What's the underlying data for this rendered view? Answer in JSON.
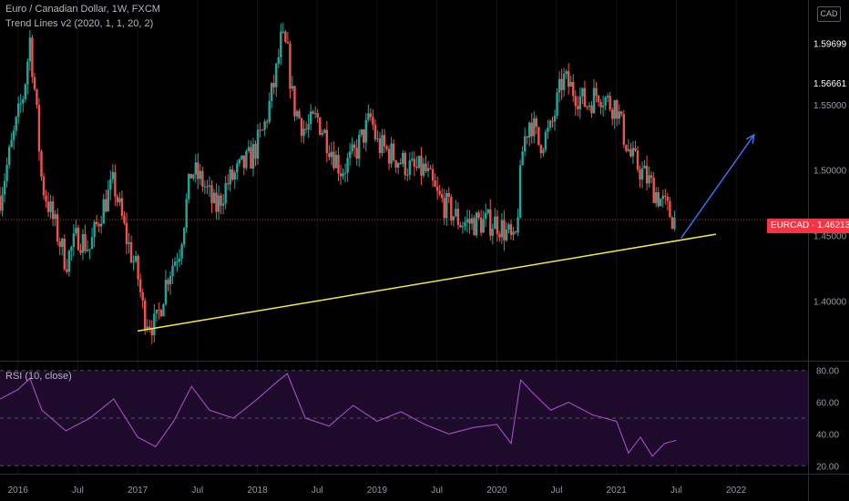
{
  "header": {
    "symbol_title": "Euro / Canadian Dollar, 1W, FXCM",
    "indicator_title": "Trend Lines v2 (2020, 1, 1, 20, 2)",
    "currency_badge": "CAD"
  },
  "rsi_panel": {
    "title": "RSI (10, close)"
  },
  "price_tag": {
    "text": "EURCAD · 1.46213",
    "value": 1.46213
  },
  "colors": {
    "background": "#000000",
    "up": "#26a69a",
    "down": "#ef5350",
    "trendline": "#f5e94a",
    "arrow": "#3a6df0",
    "rsi_line": "#a64dc8",
    "rsi_band": "#1e0a2a",
    "price_tag": "#f23645"
  },
  "chart_data": [
    {
      "type": "candlestick",
      "symbol": "EURCAD",
      "timeframe": "1W",
      "ylim": [
        1.355,
        1.63
      ],
      "xlim": [
        2015.85,
        2022.6
      ],
      "y_ticks": [
        "1.59699",
        "1.56661",
        "1.55000",
        "1.50000",
        "1.45000",
        "1.40000"
      ],
      "y_tick_values": [
        1.59699,
        1.56661,
        1.55,
        1.5,
        1.45,
        1.4
      ],
      "x_ticks": [
        "2016",
        "Jul",
        "2017",
        "Jul",
        "2018",
        "Jul",
        "2019",
        "Jul",
        "2020",
        "Jul",
        "2021",
        "Jul",
        "2022"
      ],
      "x_tick_values": [
        2016.0,
        2016.5,
        2017.0,
        2017.5,
        2018.0,
        2018.5,
        2019.0,
        2019.5,
        2020.0,
        2020.5,
        2021.0,
        2021.5,
        2022.0
      ],
      "close_path": [
        [
          2015.85,
          1.48
        ],
        [
          2015.95,
          1.52
        ],
        [
          2016.05,
          1.56
        ],
        [
          2016.1,
          1.6
        ],
        [
          2016.15,
          1.55
        ],
        [
          2016.2,
          1.49
        ],
        [
          2016.3,
          1.46
        ],
        [
          2016.4,
          1.43
        ],
        [
          2016.5,
          1.45
        ],
        [
          2016.6,
          1.44
        ],
        [
          2016.7,
          1.47
        ],
        [
          2016.8,
          1.49
        ],
        [
          2016.9,
          1.45
        ],
        [
          2017.0,
          1.42
        ],
        [
          2017.05,
          1.39
        ],
        [
          2017.15,
          1.38
        ],
        [
          2017.25,
          1.42
        ],
        [
          2017.35,
          1.44
        ],
        [
          2017.45,
          1.5
        ],
        [
          2017.55,
          1.49
        ],
        [
          2017.65,
          1.47
        ],
        [
          2017.75,
          1.49
        ],
        [
          2017.85,
          1.5
        ],
        [
          2017.95,
          1.51
        ],
        [
          2018.05,
          1.53
        ],
        [
          2018.15,
          1.57
        ],
        [
          2018.2,
          1.6
        ],
        [
          2018.25,
          1.59
        ],
        [
          2018.3,
          1.55
        ],
        [
          2018.4,
          1.53
        ],
        [
          2018.5,
          1.54
        ],
        [
          2018.6,
          1.52
        ],
        [
          2018.7,
          1.5
        ],
        [
          2018.8,
          1.51
        ],
        [
          2018.9,
          1.53
        ],
        [
          2018.95,
          1.54
        ],
        [
          2019.0,
          1.52
        ],
        [
          2019.15,
          1.51
        ],
        [
          2019.3,
          1.5
        ],
        [
          2019.4,
          1.5
        ],
        [
          2019.5,
          1.48
        ],
        [
          2019.6,
          1.47
        ],
        [
          2019.7,
          1.46
        ],
        [
          2019.8,
          1.46
        ],
        [
          2019.9,
          1.46
        ],
        [
          2020.0,
          1.46
        ],
        [
          2020.1,
          1.45
        ],
        [
          2020.15,
          1.44
        ],
        [
          2020.22,
          1.52
        ],
        [
          2020.28,
          1.54
        ],
        [
          2020.35,
          1.52
        ],
        [
          2020.45,
          1.53
        ],
        [
          2020.55,
          1.57
        ],
        [
          2020.65,
          1.56
        ],
        [
          2020.75,
          1.55
        ],
        [
          2020.85,
          1.56
        ],
        [
          2020.95,
          1.55
        ],
        [
          2021.0,
          1.55
        ],
        [
          2021.05,
          1.53
        ],
        [
          2021.12,
          1.51
        ],
        [
          2021.2,
          1.5
        ],
        [
          2021.28,
          1.49
        ],
        [
          2021.35,
          1.48
        ],
        [
          2021.42,
          1.47
        ],
        [
          2021.5,
          1.46
        ]
      ],
      "trendline": [
        [
          2017.0,
          1.377
        ],
        [
          2021.83,
          1.451
        ]
      ],
      "projection_arrow": [
        [
          2021.54,
          1.448
        ],
        [
          2022.15,
          1.527
        ]
      ],
      "last_price": 1.46213
    },
    {
      "type": "line",
      "name": "RSI",
      "ylim": [
        15,
        85
      ],
      "y_ticks": [
        "80.00",
        "60.00",
        "40.00",
        "20.00"
      ],
      "y_tick_values": [
        80,
        60,
        40,
        20
      ],
      "band": [
        30,
        70
      ],
      "levels": [
        80,
        50,
        20
      ],
      "x": [
        2015.85,
        2016.0,
        2016.1,
        2016.2,
        2016.4,
        2016.6,
        2016.8,
        2017.0,
        2017.15,
        2017.3,
        2017.45,
        2017.6,
        2017.8,
        2018.0,
        2018.15,
        2018.25,
        2018.4,
        2018.6,
        2018.8,
        2019.0,
        2019.2,
        2019.4,
        2019.6,
        2019.8,
        2020.0,
        2020.12,
        2020.2,
        2020.3,
        2020.45,
        2020.6,
        2020.8,
        2021.0,
        2021.1,
        2021.2,
        2021.3,
        2021.4,
        2021.5
      ],
      "values": [
        62,
        68,
        75,
        55,
        42,
        50,
        62,
        38,
        32,
        48,
        70,
        55,
        50,
        62,
        72,
        78,
        50,
        45,
        58,
        48,
        54,
        46,
        40,
        44,
        46,
        34,
        74,
        66,
        55,
        60,
        52,
        48,
        28,
        38,
        26,
        34,
        36
      ]
    }
  ]
}
